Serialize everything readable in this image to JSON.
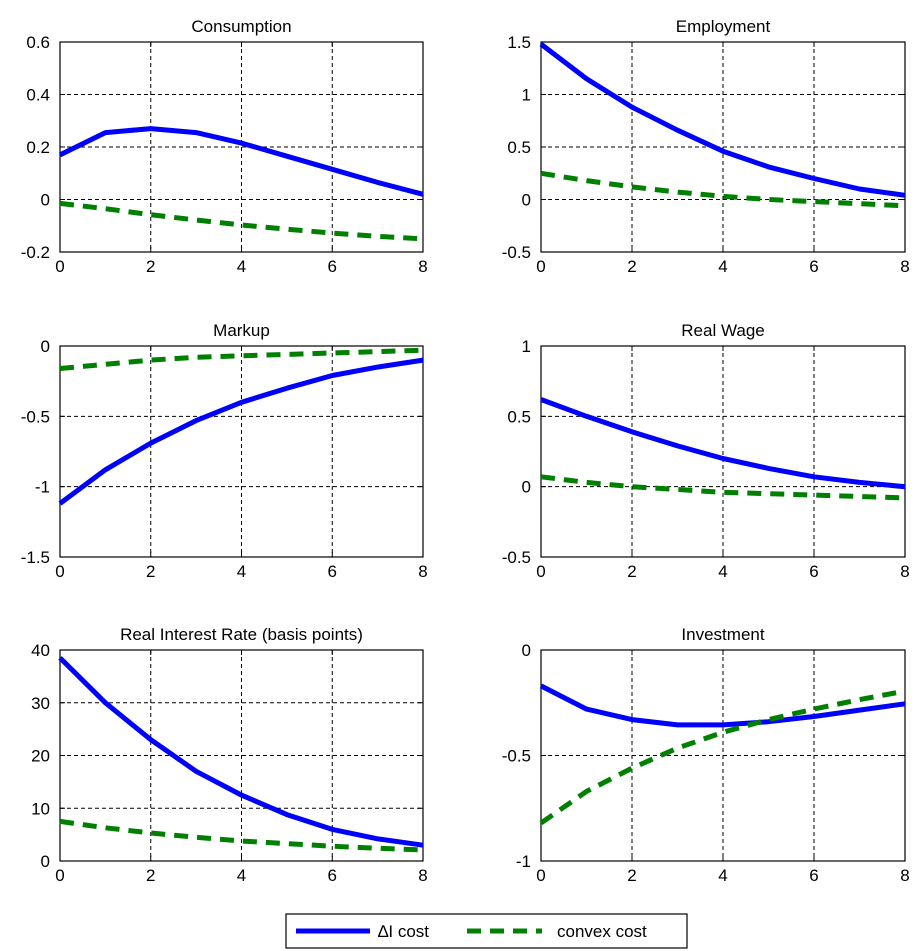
{
  "chart_data": [
    {
      "type": "line",
      "title": "Consumption",
      "x": [
        0,
        1,
        2,
        3,
        4,
        5,
        6,
        7,
        8
      ],
      "xlim": [
        0,
        8
      ],
      "xticks": [
        0,
        2,
        4,
        6,
        8
      ],
      "ylim": [
        -0.2,
        0.6
      ],
      "yticks": [
        "0.6",
        "0.4",
        "0.2",
        "0",
        "-0.2"
      ],
      "grid": true,
      "series": [
        {
          "name": "∆I cost",
          "color": "#0000ff",
          "style": "solid",
          "values": [
            0.17,
            0.255,
            0.27,
            0.255,
            0.215,
            0.165,
            0.115,
            0.065,
            0.02
          ]
        },
        {
          "name": "convex cost",
          "color": "#008000",
          "style": "dashed",
          "values": [
            -0.015,
            -0.035,
            -0.058,
            -0.078,
            -0.097,
            -0.113,
            -0.128,
            -0.14,
            -0.15
          ]
        }
      ]
    },
    {
      "type": "line",
      "title": "Employment",
      "x": [
        0,
        1,
        2,
        3,
        4,
        5,
        6,
        7,
        8
      ],
      "xlim": [
        0,
        8
      ],
      "xticks": [
        0,
        2,
        4,
        6,
        8
      ],
      "ylim": [
        -0.5,
        1.5
      ],
      "yticks": [
        "1.5",
        "1",
        "0.5",
        "0",
        "-0.5"
      ],
      "grid": true,
      "series": [
        {
          "name": "∆I cost",
          "color": "#0000ff",
          "style": "solid",
          "values": [
            1.48,
            1.15,
            0.88,
            0.66,
            0.46,
            0.31,
            0.2,
            0.1,
            0.04
          ]
        },
        {
          "name": "convex cost",
          "color": "#008000",
          "style": "dashed",
          "values": [
            0.25,
            0.18,
            0.12,
            0.07,
            0.03,
            0.0,
            -0.02,
            -0.04,
            -0.06
          ]
        }
      ]
    },
    {
      "type": "line",
      "title": "Markup",
      "x": [
        0,
        1,
        2,
        3,
        4,
        5,
        6,
        7,
        8
      ],
      "xlim": [
        0,
        8
      ],
      "xticks": [
        0,
        2,
        4,
        6,
        8
      ],
      "ylim": [
        -1.5,
        0
      ],
      "yticks": [
        "0",
        "-0.5",
        "-1",
        "-1.5"
      ],
      "grid": true,
      "series": [
        {
          "name": "∆I cost",
          "color": "#0000ff",
          "style": "solid",
          "values": [
            -1.12,
            -0.88,
            -0.69,
            -0.53,
            -0.4,
            -0.3,
            -0.21,
            -0.15,
            -0.1
          ]
        },
        {
          "name": "convex cost",
          "color": "#008000",
          "style": "dashed",
          "values": [
            -0.16,
            -0.13,
            -0.1,
            -0.08,
            -0.07,
            -0.06,
            -0.05,
            -0.04,
            -0.03
          ]
        }
      ]
    },
    {
      "type": "line",
      "title": "Real Wage",
      "x": [
        0,
        1,
        2,
        3,
        4,
        5,
        6,
        7,
        8
      ],
      "xlim": [
        0,
        8
      ],
      "xticks": [
        0,
        2,
        4,
        6,
        8
      ],
      "ylim": [
        -0.5,
        1
      ],
      "yticks": [
        "1",
        "0.5",
        "0",
        "-0.5"
      ],
      "grid": true,
      "series": [
        {
          "name": "∆I cost",
          "color": "#0000ff",
          "style": "solid",
          "values": [
            0.62,
            0.5,
            0.39,
            0.29,
            0.2,
            0.13,
            0.07,
            0.03,
            0.0
          ]
        },
        {
          "name": "convex cost",
          "color": "#008000",
          "style": "dashed",
          "values": [
            0.07,
            0.03,
            0.0,
            -0.02,
            -0.04,
            -0.05,
            -0.06,
            -0.07,
            -0.08
          ]
        }
      ]
    },
    {
      "type": "line",
      "title": "Real Interest Rate (basis points)",
      "x": [
        0,
        1,
        2,
        3,
        4,
        5,
        6,
        7,
        8
      ],
      "xlim": [
        0,
        8
      ],
      "xticks": [
        0,
        2,
        4,
        6,
        8
      ],
      "ylim": [
        0,
        40
      ],
      "yticks": [
        "40",
        "30",
        "20",
        "10",
        "0"
      ],
      "grid": true,
      "series": [
        {
          "name": "∆I cost",
          "color": "#0000ff",
          "style": "solid",
          "values": [
            38.5,
            30.0,
            23.0,
            17.0,
            12.5,
            8.8,
            6.0,
            4.2,
            3.0
          ]
        },
        {
          "name": "convex cost",
          "color": "#008000",
          "style": "dashed",
          "values": [
            7.5,
            6.3,
            5.3,
            4.5,
            3.8,
            3.3,
            2.8,
            2.4,
            2.1
          ]
        }
      ]
    },
    {
      "type": "line",
      "title": "Investment",
      "x": [
        0,
        1,
        2,
        3,
        4,
        5,
        6,
        7,
        8
      ],
      "xlim": [
        0,
        8
      ],
      "xticks": [
        0,
        2,
        4,
        6,
        8
      ],
      "ylim": [
        -1,
        0
      ],
      "yticks": [
        "0",
        "-0.5",
        "-1"
      ],
      "grid": true,
      "series": [
        {
          "name": "∆I cost",
          "color": "#0000ff",
          "style": "solid",
          "values": [
            -0.17,
            -0.28,
            -0.33,
            -0.355,
            -0.355,
            -0.34,
            -0.315,
            -0.285,
            -0.255
          ]
        },
        {
          "name": "convex cost",
          "color": "#008000",
          "style": "dashed",
          "values": [
            -0.82,
            -0.67,
            -0.56,
            -0.465,
            -0.39,
            -0.33,
            -0.28,
            -0.235,
            -0.195
          ]
        }
      ]
    }
  ],
  "legend": {
    "position": "bottom-center",
    "items": [
      {
        "label": "∆I cost",
        "color": "#0000ff",
        "style": "solid"
      },
      {
        "label": "convex cost",
        "color": "#008000",
        "style": "dashed"
      }
    ]
  }
}
